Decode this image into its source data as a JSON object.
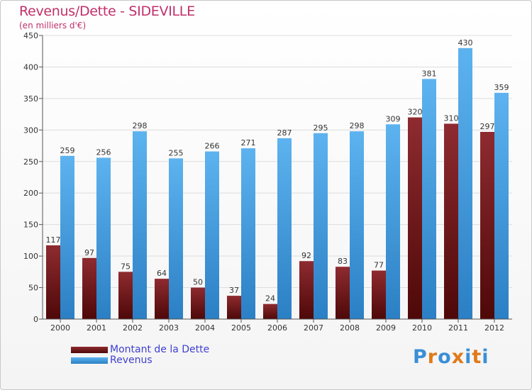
{
  "title": "Revenus/Dette - SIDEVILLE",
  "subtitle": "(en milliers d'€)",
  "colors": {
    "dette": "#7a1e22",
    "revenus": "#4aa3e6",
    "title": "#c0306a",
    "legend_text": "#4040d0"
  },
  "logo": {
    "letters": [
      "P",
      "r",
      "o",
      "x",
      "i",
      "t",
      "i"
    ],
    "colors": [
      "#3a8fd6",
      "#e07a1a",
      "#3a8fd6",
      "#e07a1a",
      "#3a8fd6",
      "#e07a1a",
      "#3a8fd6"
    ]
  },
  "chart_data": {
    "type": "bar",
    "categories": [
      "2000",
      "2001",
      "2002",
      "2003",
      "2004",
      "2005",
      "2006",
      "2007",
      "2008",
      "2009",
      "2010",
      "2011",
      "2012"
    ],
    "series": [
      {
        "name": "Montant de la Dette",
        "color": "#7a1e22",
        "values": [
          117,
          97,
          75,
          64,
          50,
          37,
          24,
          92,
          83,
          77,
          320,
          310,
          297
        ]
      },
      {
        "name": "Revenus",
        "color": "#4aa3e6",
        "values": [
          259,
          256,
          298,
          255,
          266,
          271,
          287,
          295,
          298,
          309,
          381,
          430,
          359
        ]
      }
    ],
    "ylim": [
      0,
      450
    ],
    "yticks": [
      0,
      50,
      100,
      150,
      200,
      250,
      300,
      350,
      400,
      450
    ],
    "grid": true,
    "legend_position": "bottom-left"
  }
}
